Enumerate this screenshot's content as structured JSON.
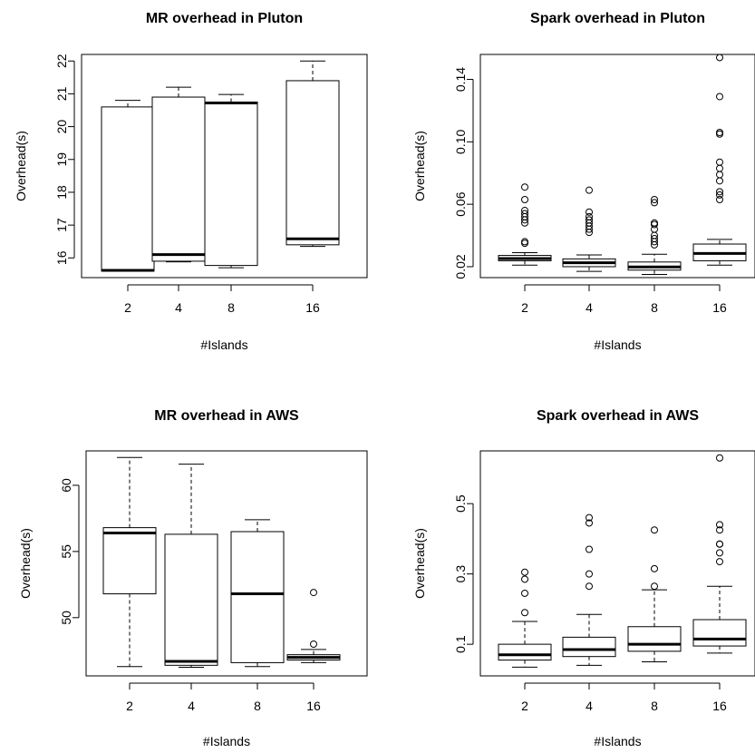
{
  "chart_data": [
    {
      "type": "boxplot",
      "title": "MR overhead in Pluton",
      "xlabel": "#Islands",
      "ylabel": "Overhead(s)",
      "categories": [
        "2",
        "4",
        "8",
        "16"
      ],
      "ylim": [
        15.4,
        22.2
      ],
      "yticks": [
        "16",
        "17",
        "18",
        "19",
        "20",
        "21",
        "22"
      ],
      "boxes": [
        {
          "lower_whisker": 15.6,
          "q1": 15.6,
          "median": 15.62,
          "q3": 20.6,
          "upper_whisker": 20.8,
          "outliers": []
        },
        {
          "lower_whisker": 15.88,
          "q1": 15.9,
          "median": 16.1,
          "q3": 20.9,
          "upper_whisker": 21.2,
          "outliers": []
        },
        {
          "lower_whisker": 15.7,
          "q1": 15.77,
          "median": 20.72,
          "q3": 20.75,
          "upper_whisker": 20.98,
          "outliers": []
        },
        {
          "lower_whisker": 16.35,
          "q1": 16.4,
          "median": 16.58,
          "q3": 21.4,
          "upper_whisker": 22.0,
          "outliers": []
        }
      ]
    },
    {
      "type": "boxplot",
      "title": "Spark overhead in Pluton",
      "xlabel": "#Islands",
      "ylabel": "Overhead(s)",
      "categories": [
        "2",
        "4",
        "8",
        "16"
      ],
      "ylim": [
        0.013,
        0.156
      ],
      "yticks": [
        "0.02",
        "0.06",
        "0.10",
        "0.14"
      ],
      "boxes": [
        {
          "lower_whisker": 0.021,
          "q1": 0.0238,
          "median": 0.0252,
          "q3": 0.0272,
          "upper_whisker": 0.029,
          "outliers": [
            0.035,
            0.036,
            0.048,
            0.05,
            0.052,
            0.054,
            0.056,
            0.063,
            0.071
          ]
        },
        {
          "lower_whisker": 0.017,
          "q1": 0.02,
          "median": 0.0225,
          "q3": 0.025,
          "upper_whisker": 0.0275,
          "outliers": [
            0.042,
            0.044,
            0.046,
            0.048,
            0.05,
            0.052,
            0.055,
            0.069
          ]
        },
        {
          "lower_whisker": 0.015,
          "q1": 0.0178,
          "median": 0.0198,
          "q3": 0.023,
          "upper_whisker": 0.028,
          "outliers": [
            0.034,
            0.036,
            0.038,
            0.04,
            0.044,
            0.047,
            0.048,
            0.061,
            0.063
          ]
        },
        {
          "lower_whisker": 0.021,
          "q1": 0.0238,
          "median": 0.0285,
          "q3": 0.0345,
          "upper_whisker": 0.0375,
          "outliers": [
            0.063,
            0.066,
            0.068,
            0.075,
            0.079,
            0.083,
            0.087,
            0.105,
            0.106,
            0.129,
            0.154
          ]
        }
      ]
    },
    {
      "type": "boxplot",
      "title": "MR overhead in AWS",
      "xlabel": "#Islands",
      "ylabel": "Overhead(s)",
      "categories": [
        "2",
        "4",
        "8",
        "16"
      ],
      "ylim": [
        45.6,
        62.6
      ],
      "yticks": [
        "50",
        "55",
        "60"
      ],
      "boxes": [
        {
          "lower_whisker": 46.3,
          "q1": 51.8,
          "median": 56.4,
          "q3": 56.8,
          "upper_whisker": 62.1,
          "outliers": []
        },
        {
          "lower_whisker": 46.25,
          "q1": 46.4,
          "median": 46.7,
          "q3": 56.3,
          "upper_whisker": 61.6,
          "outliers": []
        },
        {
          "lower_whisker": 46.3,
          "q1": 46.6,
          "median": 51.8,
          "q3": 56.5,
          "upper_whisker": 57.4,
          "outliers": []
        },
        {
          "lower_whisker": 46.6,
          "q1": 46.8,
          "median": 47.0,
          "q3": 47.2,
          "upper_whisker": 47.6,
          "outliers": [
            48.0,
            51.9
          ]
        }
      ]
    },
    {
      "type": "boxplot",
      "title": "Spark overhead in AWS",
      "xlabel": "#Islands",
      "ylabel": "Overhead(s)",
      "categories": [
        "2",
        "4",
        "8",
        "16"
      ],
      "ylim": [
        0.01,
        0.65
      ],
      "yticks": [
        "0.1",
        "0.3",
        "0.5"
      ],
      "boxes": [
        {
          "lower_whisker": 0.035,
          "q1": 0.055,
          "median": 0.07,
          "q3": 0.1,
          "upper_whisker": 0.165,
          "outliers": [
            0.19,
            0.245,
            0.285,
            0.305
          ]
        },
        {
          "lower_whisker": 0.04,
          "q1": 0.065,
          "median": 0.085,
          "q3": 0.12,
          "upper_whisker": 0.185,
          "outliers": [
            0.265,
            0.3,
            0.37,
            0.445,
            0.46
          ]
        },
        {
          "lower_whisker": 0.05,
          "q1": 0.08,
          "median": 0.1,
          "q3": 0.15,
          "upper_whisker": 0.255,
          "outliers": [
            0.265,
            0.315,
            0.425
          ]
        },
        {
          "lower_whisker": 0.075,
          "q1": 0.095,
          "median": 0.115,
          "q3": 0.17,
          "upper_whisker": 0.265,
          "outliers": [
            0.335,
            0.36,
            0.385,
            0.385,
            0.425,
            0.44,
            0.63
          ]
        }
      ]
    }
  ]
}
